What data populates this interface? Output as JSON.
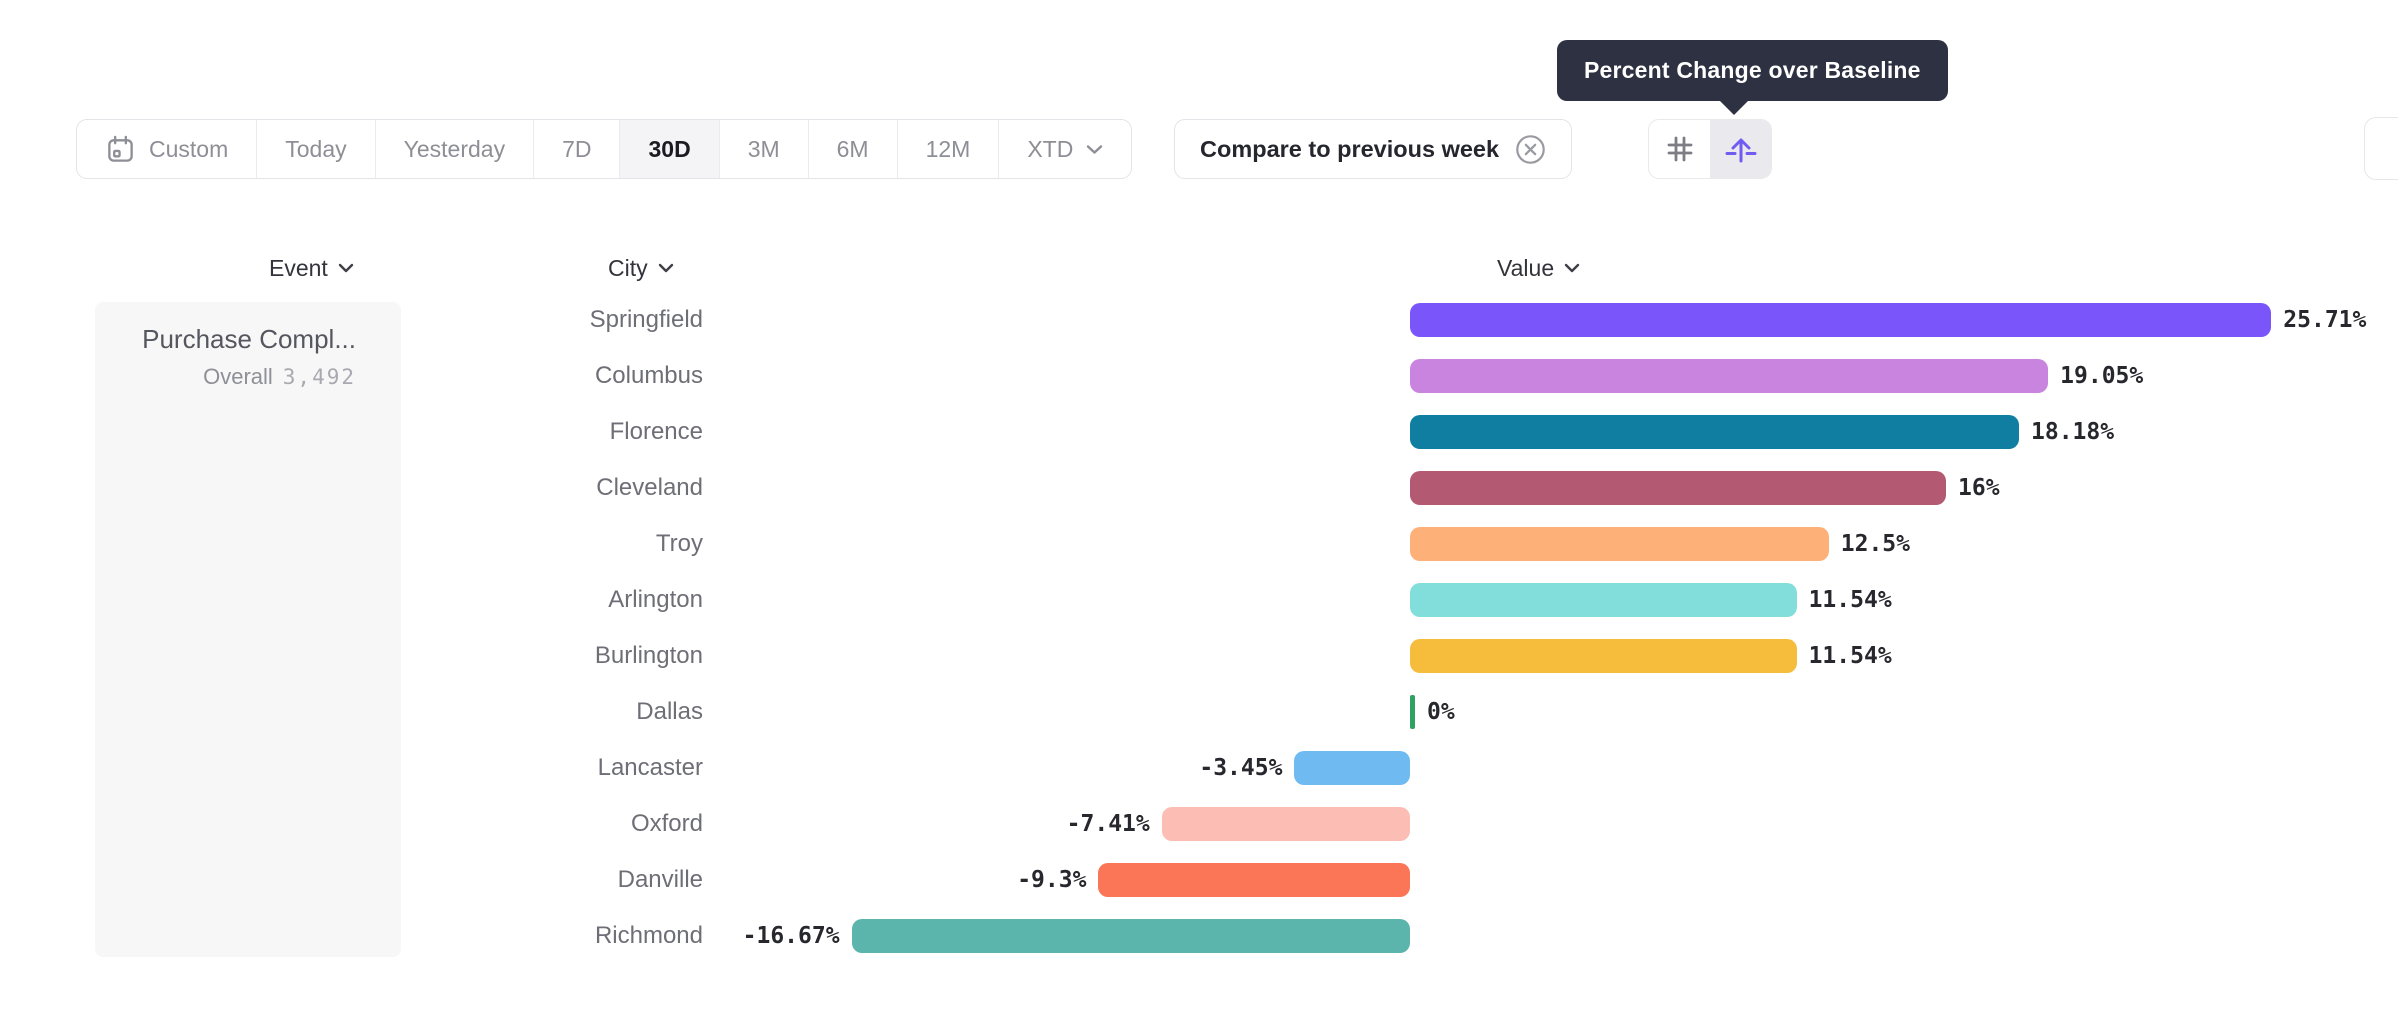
{
  "tooltip": {
    "text": "Percent Change over Baseline"
  },
  "toolbar": {
    "date_ranges": [
      {
        "label": "Custom",
        "selected": false
      },
      {
        "label": "Today",
        "selected": false
      },
      {
        "label": "Yesterday",
        "selected": false
      },
      {
        "label": "7D",
        "selected": false
      },
      {
        "label": "30D",
        "selected": true
      },
      {
        "label": "3M",
        "selected": false
      },
      {
        "label": "6M",
        "selected": false
      },
      {
        "label": "12M",
        "selected": false
      },
      {
        "label": "XTD",
        "selected": false
      }
    ],
    "compare": {
      "label": "Compare to previous week",
      "dismiss_icon": "dismiss-circle"
    },
    "view_toggles": [
      {
        "icon": "grid-hash",
        "selected": false
      },
      {
        "icon": "percent-change-baseline-arrow",
        "selected": true
      }
    ]
  },
  "table": {
    "columns": [
      {
        "label": "Event"
      },
      {
        "label": "City"
      },
      {
        "label": "Value"
      }
    ],
    "event": {
      "name": "Purchase Compl...",
      "overall_label": "Overall",
      "overall_value": "3,492"
    }
  },
  "chart_data": {
    "type": "bar",
    "orientation": "horizontal",
    "value_format": "percent",
    "baseline": 0,
    "xlim": [
      -16.67,
      25.71
    ],
    "grid": false,
    "legend": false,
    "categories": [
      "Springfield",
      "Columbus",
      "Florence",
      "Cleveland",
      "Troy",
      "Arlington",
      "Burlington",
      "Dallas",
      "Lancaster",
      "Oxford",
      "Danville",
      "Richmond"
    ],
    "values": [
      25.71,
      19.05,
      18.18,
      16,
      12.5,
      11.54,
      11.54,
      0,
      -3.45,
      -7.41,
      -9.3,
      -16.67
    ],
    "value_labels": [
      "25.71%",
      "19.05%",
      "18.18%",
      "16%",
      "12.5%",
      "11.54%",
      "11.54%",
      "0%",
      "-3.45%",
      "-7.41%",
      "-9.3%",
      "-16.67%"
    ],
    "bar_colors": [
      "#7A55FA",
      "#C884DE",
      "#0F7EA0",
      "#B35A72",
      "#FDB179",
      "#82DEDA",
      "#F5BD3B",
      "#2EA164",
      "#70BAF2",
      "#FCBDB4",
      "#FB7557",
      "#5BB5AD"
    ]
  },
  "colors": {
    "accent_purple": "#6F5CF1",
    "tooltip_bg": "#2e3142",
    "card_bg": "#f7f7f8",
    "border": "#e4e4e8",
    "muted_text": "#8e8e96",
    "dark_text": "#26262e",
    "positive_zero_green": "#2EA164"
  }
}
